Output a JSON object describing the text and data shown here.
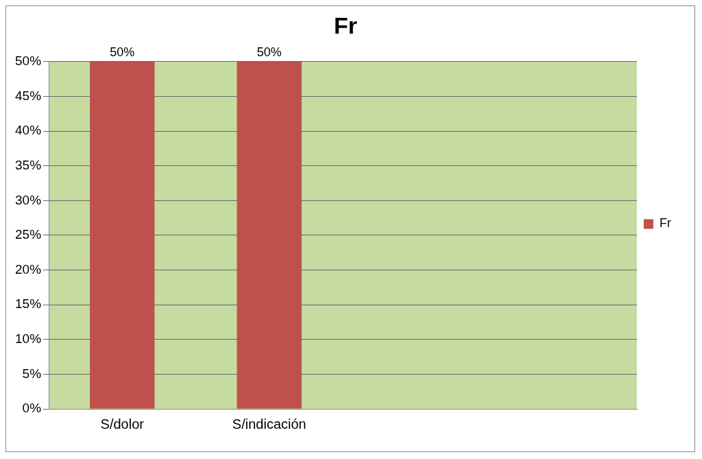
{
  "chart_data": {
    "type": "bar",
    "title": "Fr",
    "categories": [
      "S/dolor",
      "S/indicación",
      null,
      null
    ],
    "series": [
      {
        "name": "Fr",
        "color": "#c0504d",
        "values": [
          50,
          50,
          null,
          null
        ],
        "value_labels": [
          "50%",
          "50%",
          null,
          null
        ]
      }
    ],
    "ylim": [
      0,
      50
    ],
    "yticks": [
      {
        "value": 0,
        "label": "0%"
      },
      {
        "value": 5,
        "label": "5%"
      },
      {
        "value": 10,
        "label": "10%"
      },
      {
        "value": 15,
        "label": "15%"
      },
      {
        "value": 20,
        "label": "20%"
      },
      {
        "value": 25,
        "label": "25%"
      },
      {
        "value": 30,
        "label": "30%"
      },
      {
        "value": 35,
        "label": "35%"
      },
      {
        "value": 40,
        "label": "40%"
      },
      {
        "value": 45,
        "label": "45%"
      },
      {
        "value": 50,
        "label": "50%"
      }
    ],
    "grid": "y",
    "legend": "right"
  }
}
